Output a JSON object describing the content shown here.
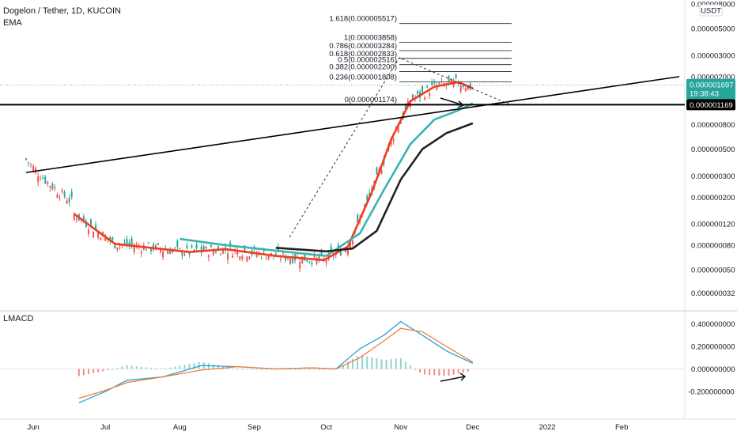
{
  "header": {
    "symbol_line": "Dogelon / Tether, 1D, KUCOIN",
    "indicator": "EMA",
    "lower_indicator": "LMACD"
  },
  "currency_badge": "USDT",
  "price_labels": {
    "last_price": "0.000001697",
    "countdown": "19:38:43",
    "line_price": "0.000001169"
  },
  "colors": {
    "up": "#26a69a",
    "down": "#ef5350",
    "ema_fast": "#f23c1f",
    "ema_mid": "#3bb3b0",
    "ema_slow": "#222222",
    "last_price_bg": "#26a69a",
    "line_price_bg": "#000000",
    "macd_line": "#2aa3d6",
    "signal_line": "#f57c38"
  },
  "chart_data": [
    {
      "type": "candlestick",
      "title": "Dogelon / Tether, 1D, KUCOIN",
      "y_scale": "log",
      "y_ticks": [
        "0.000008000",
        "0.000005000",
        "0.000003000",
        "0.000002000",
        "0.000001200",
        "0.000000800",
        "0.000000500",
        "0.000000300",
        "0.000000200",
        "0.000000120",
        "0.000000080",
        "0.000000050",
        "0.000000032"
      ],
      "x_ticks": [
        "Jun",
        "Jul",
        "Aug",
        "Sep",
        "Oct",
        "Nov",
        "Dec",
        "2022",
        "Feb"
      ],
      "ema_series": [
        {
          "color": "red",
          "points": [
            [
              "2021-06-18",
              1.45e-07
            ],
            [
              "2021-07-05",
              8.2e-08
            ],
            [
              "2021-07-20",
              7.6e-08
            ],
            [
              "2021-08-05",
              7e-08
            ],
            [
              "2021-08-20",
              7.4e-08
            ],
            [
              "2021-09-10",
              6.5e-08
            ],
            [
              "2021-09-30",
              6e-08
            ],
            [
              "2021-10-10",
              7.8e-08
            ],
            [
              "2021-10-20",
              2.2e-07
            ],
            [
              "2021-10-28",
              6e-07
            ],
            [
              "2021-11-05",
              1.25e-06
            ],
            [
              "2021-11-15",
              1.65e-06
            ],
            [
              "2021-11-25",
              1.8e-06
            ],
            [
              "2021-12-01",
              1.6e-06
            ]
          ]
        },
        {
          "color": "teal",
          "points": [
            [
              "2021-08-01",
              9e-08
            ],
            [
              "2021-08-20",
              8e-08
            ],
            [
              "2021-09-10",
              7.2e-08
            ],
            [
              "2021-10-01",
              6.5e-08
            ],
            [
              "2021-10-15",
              1e-07
            ],
            [
              "2021-10-25",
              2.3e-07
            ],
            [
              "2021-11-05",
              5.5e-07
            ],
            [
              "2021-11-15",
              8.8e-07
            ],
            [
              "2021-11-25",
              1.05e-06
            ],
            [
              "2021-12-01",
              1.2e-06
            ]
          ]
        },
        {
          "color": "black",
          "points": [
            [
              "2021-09-10",
              7.6e-08
            ],
            [
              "2021-10-01",
              7.1e-08
            ],
            [
              "2021-10-12",
              7.5e-08
            ],
            [
              "2021-10-22",
              1.05e-07
            ],
            [
              "2021-11-01",
              2.8e-07
            ],
            [
              "2021-11-10",
              5e-07
            ],
            [
              "2021-11-20",
              6.8e-07
            ],
            [
              "2021-12-01",
              8.2e-07
            ]
          ]
        }
      ],
      "trendline": {
        "from": [
          "2021-05-29",
          3.2e-07
        ],
        "to": [
          "2022-02-25",
          2e-06
        ]
      },
      "horizontal_line": 1.169e-06,
      "fib_levels": [
        {
          "label": "1.618(0.000005517)",
          "value": 5.517e-06
        },
        {
          "label": "1(0.000003858)",
          "value": 3.858e-06
        },
        {
          "label": "0.786(0.000003284)",
          "value": 3.284e-06
        },
        {
          "label": "0.618(0.000002833)",
          "value": 2.833e-06
        },
        {
          "label": "0.5(0.000002516)",
          "value": 2.516e-06
        },
        {
          "label": "0.382(0.000002200)",
          "value": 2.2e-06
        },
        {
          "label": "0.236(0.000001808)",
          "value": 1.808e-06
        },
        {
          "label": "0(0.000001174)",
          "value": 1.174e-06
        }
      ]
    },
    {
      "type": "macd",
      "title": "LMACD",
      "y_ticks": [
        "0.400000000",
        "0.200000000",
        "0.000000000",
        "-0.200000000"
      ],
      "ylim": [
        -0.28,
        0.45
      ],
      "macd_line": [
        [
          "2021-06-20",
          -0.3
        ],
        [
          "2021-07-01",
          -0.2
        ],
        [
          "2021-07-10",
          -0.1
        ],
        [
          "2021-07-25",
          -0.07
        ],
        [
          "2021-08-10",
          0.03
        ],
        [
          "2021-08-25",
          0.02
        ],
        [
          "2021-09-10",
          0.0
        ],
        [
          "2021-09-25",
          0.01
        ],
        [
          "2021-10-05",
          0.0
        ],
        [
          "2021-10-15",
          0.18
        ],
        [
          "2021-10-25",
          0.3
        ],
        [
          "2021-11-01",
          0.42
        ],
        [
          "2021-11-10",
          0.3
        ],
        [
          "2021-11-20",
          0.16
        ],
        [
          "2021-12-01",
          0.05
        ]
      ],
      "signal_line": [
        [
          "2021-06-20",
          -0.26
        ],
        [
          "2021-07-01",
          -0.19
        ],
        [
          "2021-07-10",
          -0.12
        ],
        [
          "2021-07-25",
          -0.07
        ],
        [
          "2021-08-10",
          -0.01
        ],
        [
          "2021-08-25",
          0.02
        ],
        [
          "2021-09-10",
          0.0
        ],
        [
          "2021-09-25",
          0.01
        ],
        [
          "2021-10-05",
          0.0
        ],
        [
          "2021-10-15",
          0.1
        ],
        [
          "2021-10-25",
          0.25
        ],
        [
          "2021-11-01",
          0.36
        ],
        [
          "2021-11-10",
          0.33
        ],
        [
          "2021-11-20",
          0.2
        ],
        [
          "2021-12-01",
          0.06
        ]
      ]
    }
  ]
}
